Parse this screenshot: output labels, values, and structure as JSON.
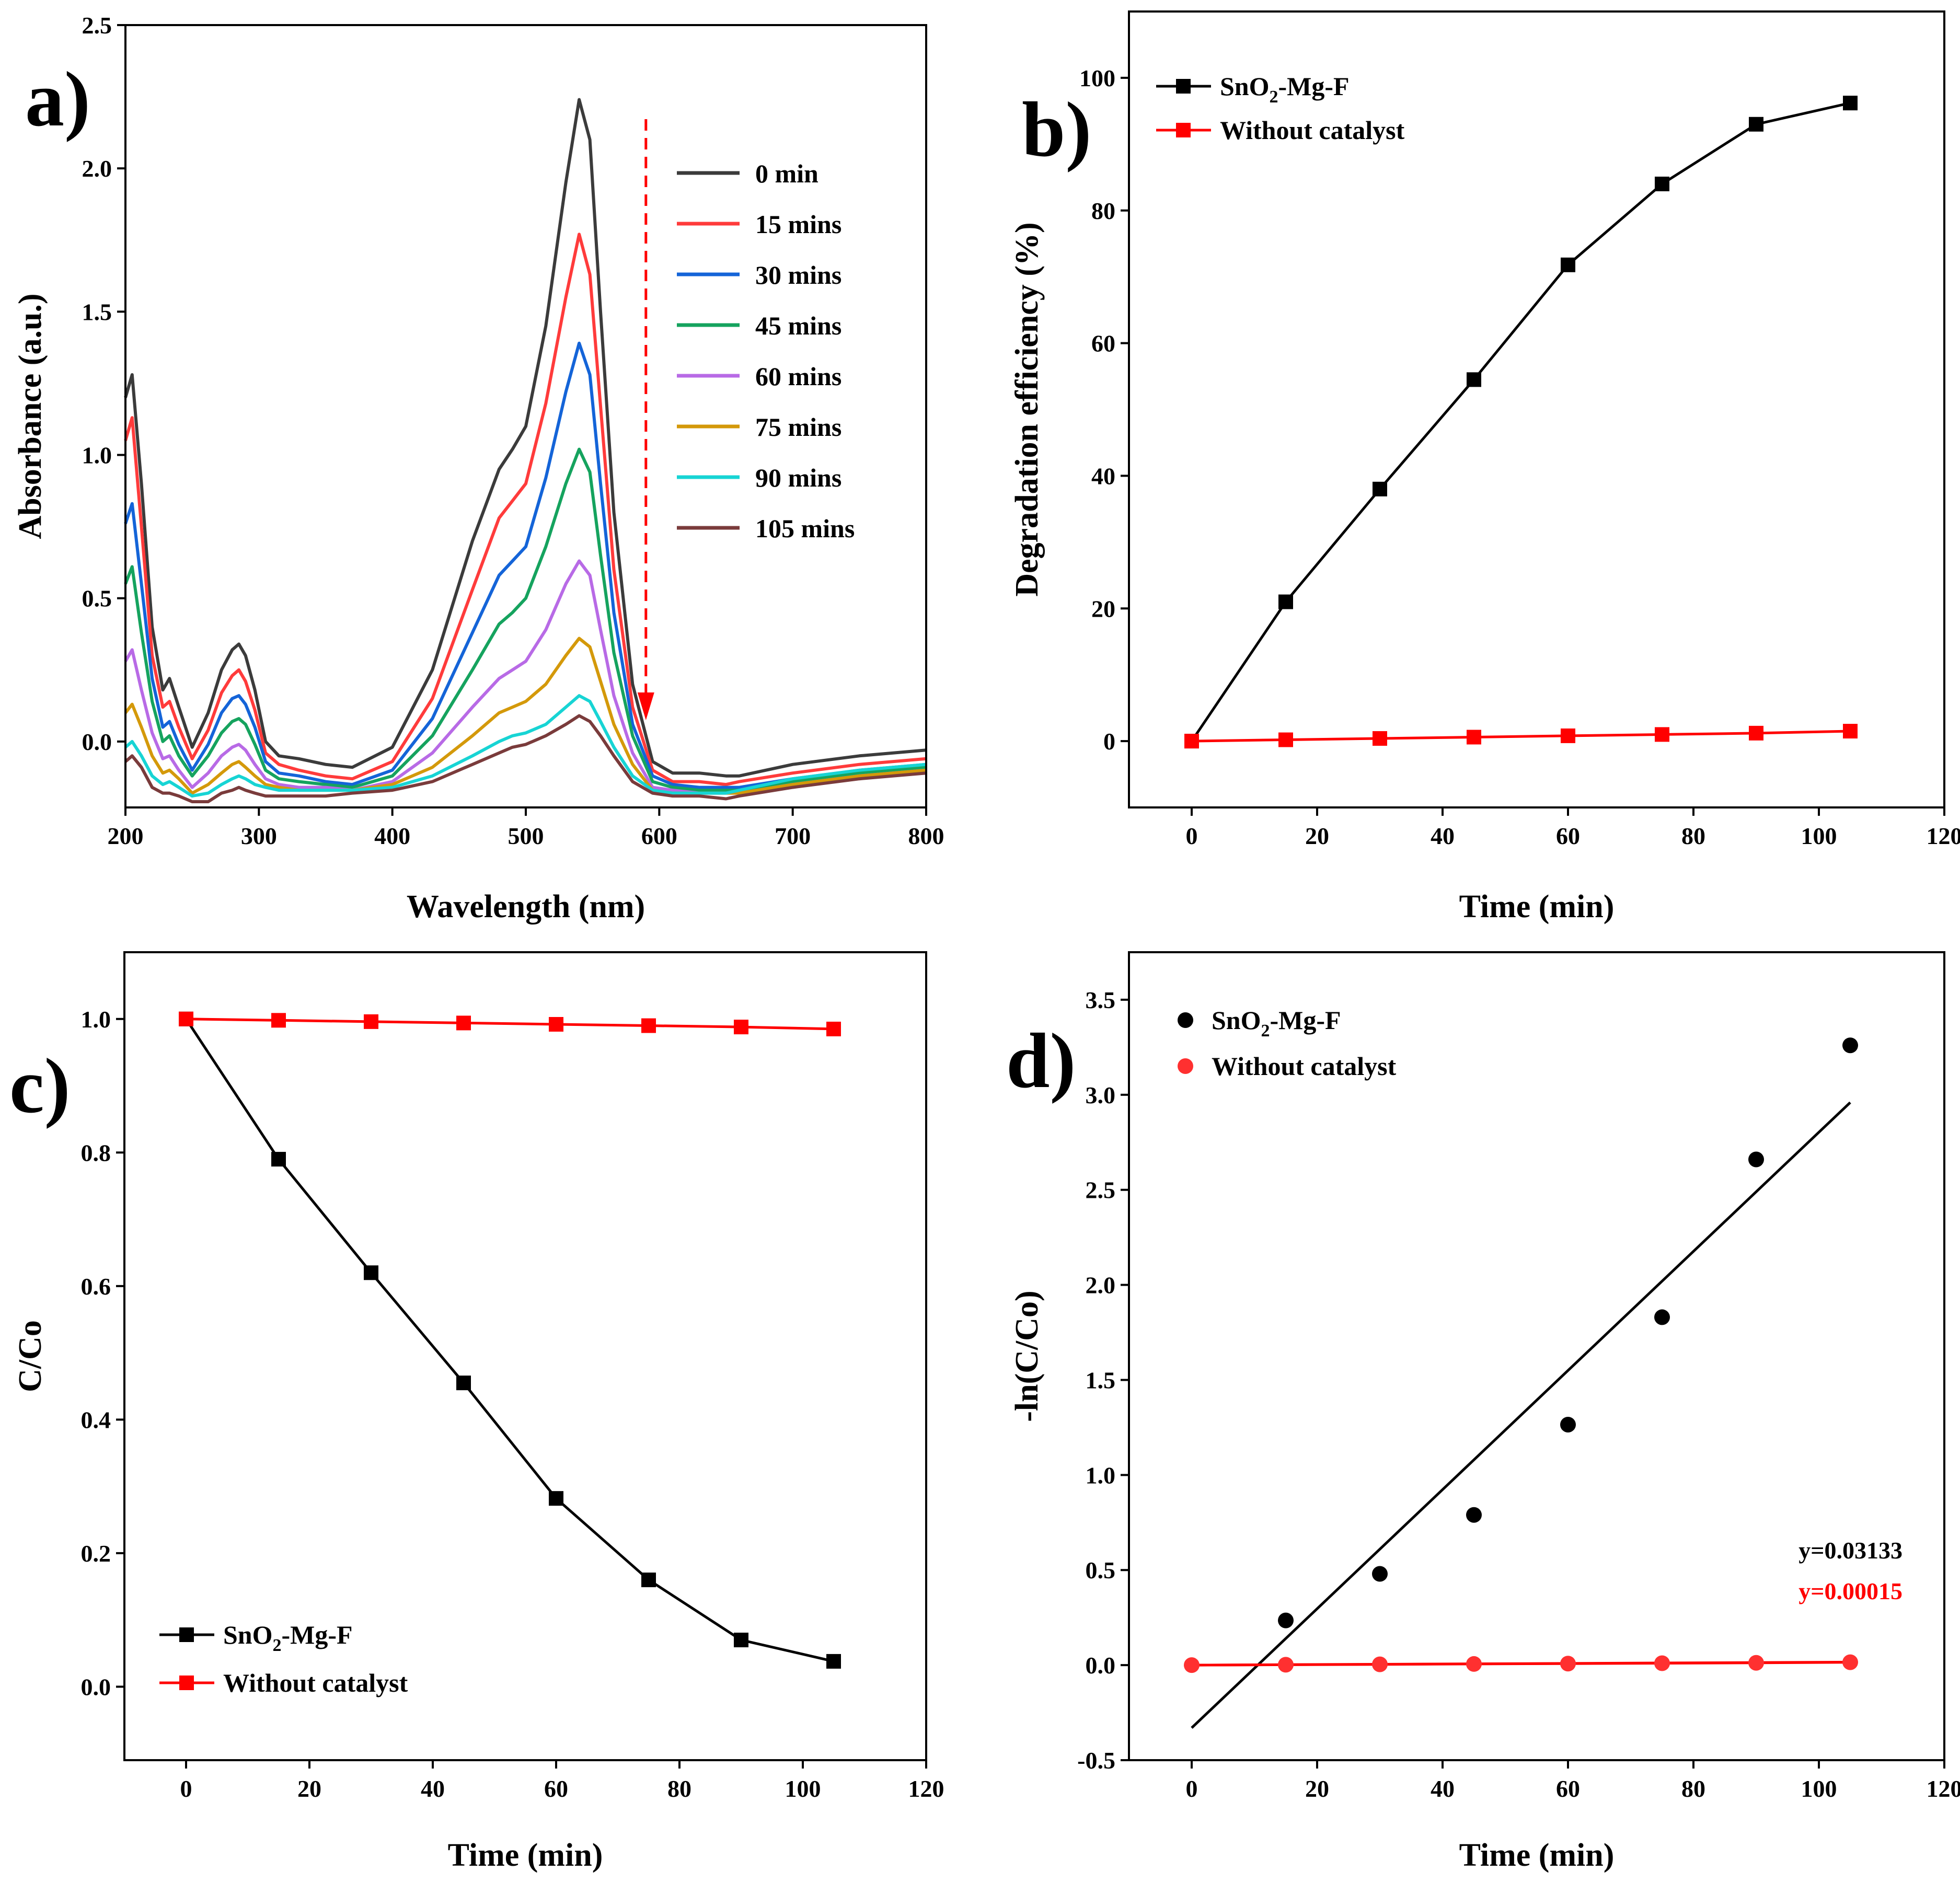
{
  "colors": {
    "black": "#000000",
    "red": "#ff0000",
    "spectra": [
      "#3b3b3b",
      "#ff3b3b",
      "#1464d8",
      "#15a35e",
      "#b86ae6",
      "#d4990a",
      "#17d4d4",
      "#7a3b3b"
    ]
  },
  "chart_data": [
    {
      "id": "a",
      "type": "line",
      "panel_label": "a)",
      "xlabel": "Wavelength (nm)",
      "ylabel": "Absorbance (a.u.)",
      "xlim": [
        200,
        800
      ],
      "ylim": [
        -0.23,
        2.5
      ],
      "xticks": [
        200,
        300,
        400,
        500,
        600,
        700,
        800
      ],
      "yticks": [
        0.0,
        0.5,
        1.0,
        1.5,
        2.0,
        2.5
      ],
      "ytick_labels": [
        "0.0",
        "0.5",
        "1.0",
        "1.5",
        "2.0",
        "2.5"
      ],
      "legend_location": "top-right",
      "annotation": "red dashed downward arrow at ~590 nm indicating decreasing absorbance with time",
      "x": [
        200,
        205,
        212,
        220,
        228,
        233,
        240,
        250,
        262,
        272,
        280,
        285,
        290,
        297,
        305,
        315,
        330,
        350,
        370,
        400,
        430,
        460,
        480,
        490,
        500,
        515,
        530,
        540,
        548,
        556,
        566,
        580,
        595,
        610,
        630,
        650,
        660,
        700,
        750,
        800
      ],
      "series": [
        {
          "name": "0 min",
          "values": [
            1.2,
            1.28,
            0.9,
            0.4,
            0.18,
            0.22,
            0.12,
            -0.02,
            0.1,
            0.25,
            0.32,
            0.34,
            0.3,
            0.18,
            0.0,
            -0.05,
            -0.06,
            -0.08,
            -0.09,
            -0.02,
            0.25,
            0.7,
            0.95,
            1.02,
            1.1,
            1.45,
            1.95,
            2.24,
            2.1,
            1.5,
            0.8,
            0.2,
            -0.07,
            -0.11,
            -0.11,
            -0.12,
            -0.12,
            -0.08,
            -0.05,
            -0.03
          ]
        },
        {
          "name": "15 mins",
          "values": [
            1.05,
            1.13,
            0.75,
            0.3,
            0.12,
            0.14,
            0.05,
            -0.06,
            0.04,
            0.17,
            0.23,
            0.25,
            0.21,
            0.11,
            -0.04,
            -0.08,
            -0.1,
            -0.12,
            -0.13,
            -0.07,
            0.15,
            0.53,
            0.78,
            0.84,
            0.9,
            1.18,
            1.55,
            1.77,
            1.63,
            1.17,
            0.6,
            0.12,
            -0.1,
            -0.14,
            -0.14,
            -0.15,
            -0.14,
            -0.11,
            -0.08,
            -0.06
          ]
        },
        {
          "name": "30 mins",
          "values": [
            0.76,
            0.83,
            0.55,
            0.22,
            0.05,
            0.07,
            -0.01,
            -0.1,
            -0.01,
            0.1,
            0.15,
            0.16,
            0.13,
            0.05,
            -0.07,
            -0.11,
            -0.12,
            -0.14,
            -0.15,
            -0.1,
            0.08,
            0.38,
            0.58,
            0.63,
            0.68,
            0.92,
            1.22,
            1.39,
            1.28,
            0.9,
            0.45,
            0.06,
            -0.12,
            -0.15,
            -0.16,
            -0.16,
            -0.16,
            -0.13,
            -0.1,
            -0.08
          ]
        },
        {
          "name": "45 mins",
          "values": [
            0.55,
            0.61,
            0.38,
            0.14,
            0.0,
            0.02,
            -0.05,
            -0.12,
            -0.05,
            0.03,
            0.07,
            0.08,
            0.06,
            -0.01,
            -0.1,
            -0.13,
            -0.14,
            -0.15,
            -0.16,
            -0.12,
            0.02,
            0.25,
            0.41,
            0.45,
            0.5,
            0.68,
            0.9,
            1.02,
            0.94,
            0.65,
            0.31,
            0.02,
            -0.14,
            -0.16,
            -0.17,
            -0.17,
            -0.17,
            -0.14,
            -0.11,
            -0.09
          ]
        },
        {
          "name": "60 mins",
          "values": [
            0.28,
            0.32,
            0.18,
            0.03,
            -0.06,
            -0.05,
            -0.1,
            -0.16,
            -0.11,
            -0.05,
            -0.02,
            -0.01,
            -0.03,
            -0.08,
            -0.13,
            -0.15,
            -0.16,
            -0.16,
            -0.17,
            -0.14,
            -0.04,
            0.12,
            0.22,
            0.25,
            0.28,
            0.39,
            0.55,
            0.63,
            0.58,
            0.39,
            0.16,
            -0.04,
            -0.16,
            -0.17,
            -0.18,
            -0.18,
            -0.18,
            -0.15,
            -0.12,
            -0.1
          ]
        },
        {
          "name": "75 mins",
          "values": [
            0.1,
            0.13,
            0.05,
            -0.05,
            -0.11,
            -0.1,
            -0.13,
            -0.18,
            -0.15,
            -0.11,
            -0.08,
            -0.07,
            -0.09,
            -0.12,
            -0.15,
            -0.16,
            -0.17,
            -0.17,
            -0.17,
            -0.15,
            -0.09,
            0.02,
            0.1,
            0.12,
            0.14,
            0.2,
            0.3,
            0.36,
            0.33,
            0.21,
            0.06,
            -0.08,
            -0.17,
            -0.18,
            -0.18,
            -0.18,
            -0.18,
            -0.15,
            -0.12,
            -0.1
          ]
        },
        {
          "name": "90 mins",
          "values": [
            -0.02,
            0.0,
            -0.05,
            -0.12,
            -0.15,
            -0.14,
            -0.16,
            -0.19,
            -0.18,
            -0.15,
            -0.13,
            -0.12,
            -0.13,
            -0.15,
            -0.16,
            -0.17,
            -0.17,
            -0.17,
            -0.17,
            -0.16,
            -0.12,
            -0.05,
            0.0,
            0.02,
            0.03,
            0.06,
            0.12,
            0.16,
            0.14,
            0.07,
            -0.02,
            -0.12,
            -0.17,
            -0.18,
            -0.18,
            -0.18,
            -0.17,
            -0.13,
            -0.1,
            -0.08
          ]
        },
        {
          "name": "105 mins",
          "values": [
            -0.07,
            -0.05,
            -0.09,
            -0.16,
            -0.18,
            -0.18,
            -0.19,
            -0.21,
            -0.21,
            -0.18,
            -0.17,
            -0.16,
            -0.17,
            -0.18,
            -0.19,
            -0.19,
            -0.19,
            -0.19,
            -0.18,
            -0.17,
            -0.14,
            -0.08,
            -0.04,
            -0.02,
            -0.01,
            0.02,
            0.06,
            0.09,
            0.07,
            0.02,
            -0.05,
            -0.14,
            -0.18,
            -0.19,
            -0.19,
            -0.2,
            -0.19,
            -0.16,
            -0.13,
            -0.11
          ]
        }
      ]
    },
    {
      "id": "b",
      "type": "line",
      "panel_label": "b)",
      "xlabel": "Time (min)",
      "ylabel": "Degradation efficiency (%)",
      "xlim": [
        -10,
        120
      ],
      "ylim": [
        -10,
        110
      ],
      "xticks": [
        0,
        20,
        40,
        60,
        80,
        100,
        120
      ],
      "yticks": [
        0,
        20,
        40,
        60,
        80,
        100
      ],
      "legend_location": "top-left",
      "x": [
        0,
        15,
        30,
        45,
        60,
        75,
        90,
        105
      ],
      "series": [
        {
          "name": "SnO2-Mg-F",
          "label_main": "SnO",
          "label_sub": "2",
          "label_tail": "-Mg-F",
          "values": [
            0,
            21,
            38,
            54.5,
            71.8,
            84,
            93,
            96.2
          ]
        },
        {
          "name": "Without catalyst",
          "values": [
            0,
            0.2,
            0.4,
            0.6,
            0.8,
            1.0,
            1.2,
            1.5
          ]
        }
      ]
    },
    {
      "id": "c",
      "type": "line",
      "panel_label": "c)",
      "xlabel": "Time (min)",
      "ylabel": "C/Co",
      "xlim": [
        -10,
        120
      ],
      "ylim": [
        -0.11,
        1.1
      ],
      "xticks": [
        0,
        20,
        40,
        60,
        80,
        100,
        120
      ],
      "yticks": [
        0.0,
        0.2,
        0.4,
        0.6,
        0.8,
        1.0
      ],
      "ytick_labels": [
        "0.0",
        "0.2",
        "0.4",
        "0.6",
        "0.8",
        "1.0"
      ],
      "legend_location": "bottom-left",
      "x": [
        0,
        15,
        30,
        45,
        60,
        75,
        90,
        105
      ],
      "series": [
        {
          "name": "SnO2-Mg-F",
          "label_main": "SnO",
          "label_sub": "2",
          "label_tail": "-Mg-F",
          "values": [
            1.0,
            0.79,
            0.62,
            0.455,
            0.282,
            0.16,
            0.07,
            0.038
          ]
        },
        {
          "name": "Without catalyst",
          "values": [
            1.0,
            0.998,
            0.996,
            0.994,
            0.992,
            0.99,
            0.988,
            0.985
          ]
        }
      ]
    },
    {
      "id": "d",
      "type": "scatter",
      "panel_label": "d)",
      "xlabel": "Time (min)",
      "ylabel": "-ln(C/Co)",
      "xlim": [
        -10,
        120
      ],
      "ylim": [
        -0.5,
        3.75
      ],
      "xticks": [
        0,
        20,
        40,
        60,
        80,
        100,
        120
      ],
      "yticks": [
        -0.5,
        0.0,
        0.5,
        1.0,
        1.5,
        2.0,
        2.5,
        3.0,
        3.5
      ],
      "ytick_labels": [
        "-0.5",
        "0.0",
        "0.5",
        "1.0",
        "1.5",
        "2.0",
        "2.5",
        "3.0",
        "3.5"
      ],
      "legend_location": "top-left",
      "x": [
        0,
        15,
        30,
        45,
        60,
        75,
        90,
        105
      ],
      "series": [
        {
          "name": "SnO2-Mg-F",
          "label_main": "SnO",
          "label_sub": "2",
          "label_tail": "-Mg-F",
          "values": [
            0,
            0.235,
            0.48,
            0.79,
            1.265,
            1.83,
            2.66,
            3.26
          ],
          "fit": {
            "slope": 0.03133,
            "intercept": -0.33,
            "x_range": [
              0,
              105
            ]
          }
        },
        {
          "name": "Without catalyst",
          "values": [
            0,
            0.002,
            0.004,
            0.006,
            0.008,
            0.01,
            0.012,
            0.015
          ],
          "fit": {
            "slope": 0.00015,
            "intercept": 0,
            "x_range": [
              0,
              105
            ]
          }
        }
      ],
      "equations": [
        "y=0.03133",
        "y=0.00015"
      ]
    }
  ]
}
